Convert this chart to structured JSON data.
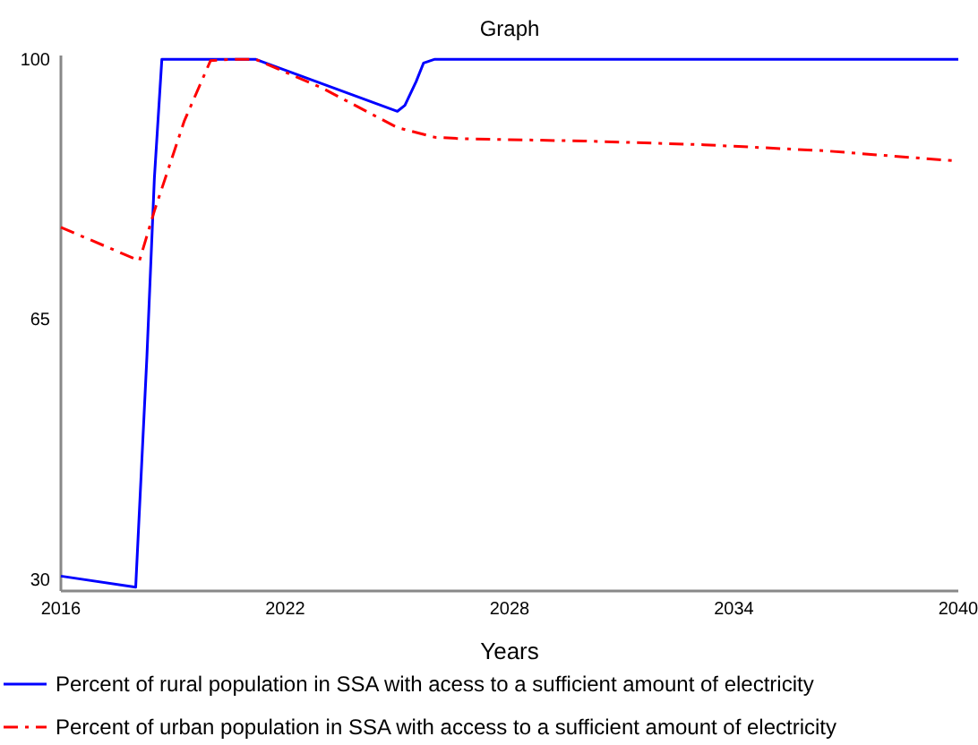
{
  "chart_data": {
    "type": "line",
    "title": "Graph",
    "xlabel": "Years",
    "xlim": [
      2016,
      2040
    ],
    "xticks": [
      2016,
      2022,
      2028,
      2034,
      2040
    ],
    "ylim": [
      28.5,
      100.5
    ],
    "yticks": [
      30,
      65,
      100
    ],
    "grid": false,
    "legend": "bottom",
    "series": [
      {
        "name": "Percent of rural population in SSA with acess to a sufficient amount of electricity",
        "color": "#0000ff",
        "line_style": "solid",
        "x": [
          2016,
          2018,
          2018.3,
          2018.5,
          2018.7,
          2021.2,
          2025,
          2025.2,
          2025.5,
          2025.7,
          2026,
          2040
        ],
        "values": [
          30.5,
          29,
          60,
          84,
          100,
          100,
          93,
          93.8,
          97,
          99.5,
          100,
          100
        ]
      },
      {
        "name": "Percent of urban population in SSA with access to a sufficient amount of electricity",
        "color": "#ff0000",
        "line_style": "dashdot",
        "x": [
          2016,
          2018.1,
          2018.5,
          2019.3,
          2020,
          2020.6,
          2021.2,
          2023,
          2025,
          2026,
          2026.8,
          2030,
          2033.2,
          2036.4,
          2040
        ],
        "values": [
          77.4,
          72.9,
          79.6,
          91.7,
          99.8,
          100,
          100,
          96.1,
          90.8,
          89.5,
          89.3,
          89,
          88.5,
          87.7,
          86.3
        ]
      }
    ]
  }
}
